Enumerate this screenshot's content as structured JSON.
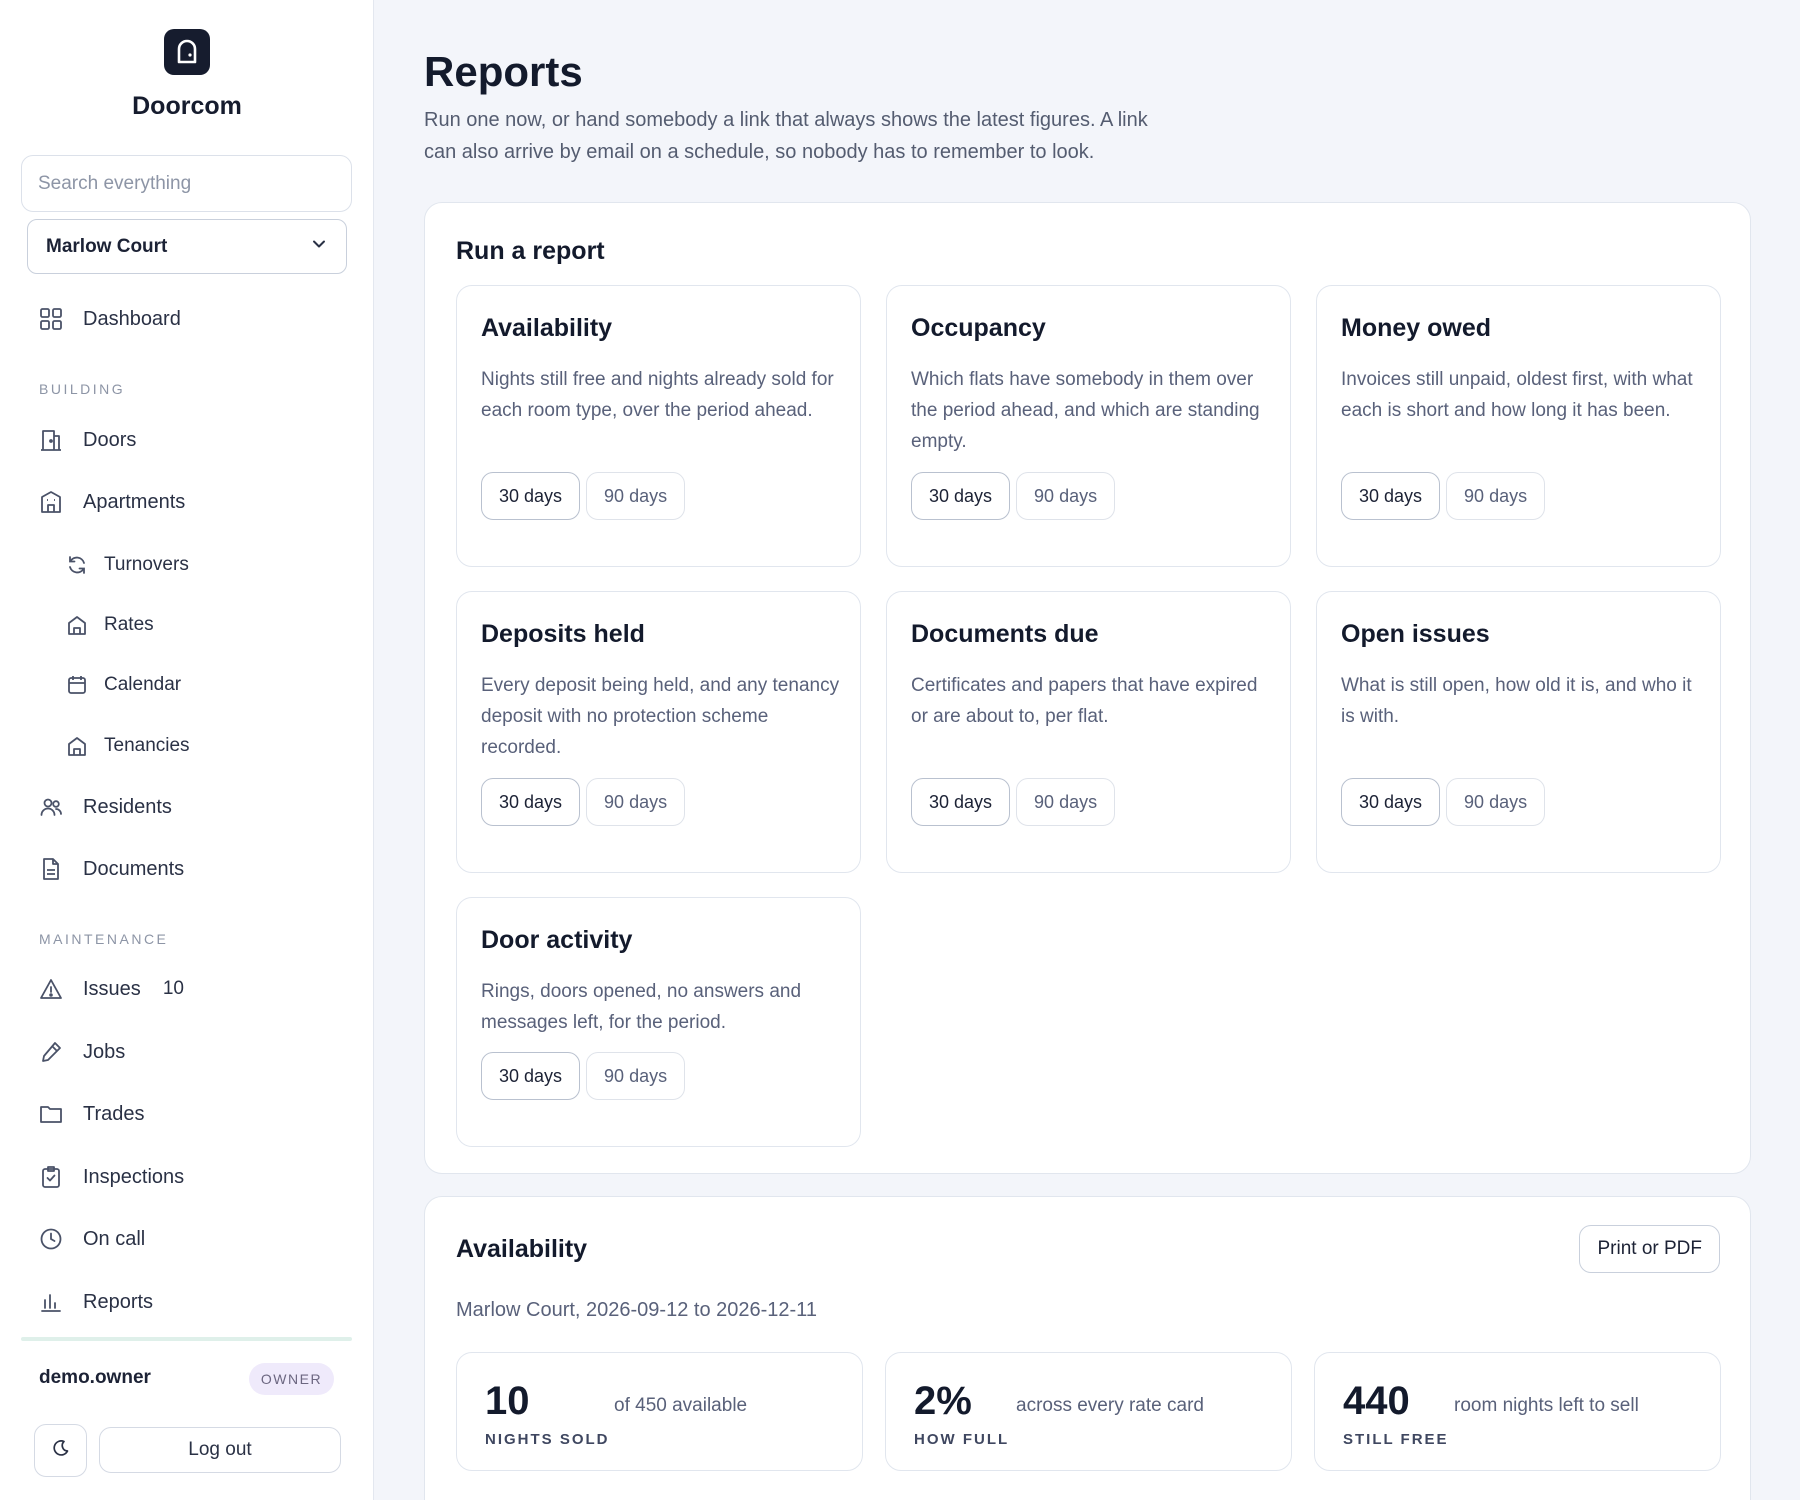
{
  "app": {
    "name": "Doorcom",
    "logo_icon": "door-icon"
  },
  "sidebar": {
    "search_placeholder": "Search everything",
    "building": "Marlow Court",
    "dashboard": {
      "label": "Dashboard",
      "icon": "grid-icon"
    },
    "sections": {
      "building": "BUILDING",
      "maintenance": "MAINTENANCE"
    },
    "building_items": [
      {
        "label": "Doors",
        "icon": "door-icon"
      },
      {
        "label": "Apartments",
        "icon": "building-icon"
      },
      {
        "label": "Turnovers",
        "icon": "refresh-icon"
      },
      {
        "label": "Rates",
        "icon": "home-icon"
      },
      {
        "label": "Calendar",
        "icon": "calendar-icon"
      },
      {
        "label": "Tenancies",
        "icon": "home-icon"
      },
      {
        "label": "Residents",
        "icon": "users-icon"
      },
      {
        "label": "Documents",
        "icon": "document-icon"
      }
    ],
    "maintenance_items": [
      {
        "label": "Issues",
        "icon": "alert-icon",
        "count": "10"
      },
      {
        "label": "Jobs",
        "icon": "pen-icon"
      },
      {
        "label": "Trades",
        "icon": "folder-icon"
      },
      {
        "label": "Inspections",
        "icon": "clipboard-check-icon"
      },
      {
        "label": "On call",
        "icon": "clock-icon"
      },
      {
        "label": "Reports",
        "icon": "bar-chart-icon"
      }
    ],
    "user": {
      "name": "demo.owner",
      "role": "OWNER"
    },
    "logout_label": "Log out",
    "theme_icon": "moon-icon"
  },
  "main": {
    "title": "Reports",
    "intro": "Run one now, or hand somebody a link that always shows the latest figures. A link can also arrive by email on a schedule, so nobody has to remember to look.",
    "run_section_title": "Run a report",
    "reports": [
      {
        "title": "Availability",
        "description": "Nights still free and nights already sold for each room type, over the period ahead.",
        "primary": "30 days",
        "secondary": "90 days"
      },
      {
        "title": "Occupancy",
        "description": "Which flats have somebody in them over the period ahead, and which are standing empty.",
        "primary": "30 days",
        "secondary": "90 days"
      },
      {
        "title": "Money owed",
        "description": "Invoices still unpaid, oldest first, with what each is short and how long it has been.",
        "primary": "30 days",
        "secondary": "90 days"
      },
      {
        "title": "Deposits held",
        "description": "Every deposit being held, and any tenancy deposit with no protection scheme recorded.",
        "primary": "30 days",
        "secondary": "90 days"
      },
      {
        "title": "Documents due",
        "description": "Certificates and papers that have expired or are about to, per flat.",
        "primary": "30 days",
        "secondary": "90 days"
      },
      {
        "title": "Open issues",
        "description": "What is still open, how old it is, and who it is with.",
        "primary": "30 days",
        "secondary": "90 days"
      },
      {
        "title": "Door activity",
        "description": "Rings, doors opened, no answers and messages left, for the period.",
        "primary": "30 days",
        "secondary": "90 days"
      }
    ],
    "result": {
      "title": "Availability",
      "print_label": "Print or PDF",
      "meta": "Marlow Court, 2026-09-12 to 2026-12-11",
      "stats": [
        {
          "value": "10",
          "label": "NIGHTS SOLD",
          "note": "of 450 available"
        },
        {
          "value": "2%",
          "label": "HOW FULL",
          "note": "across every rate card"
        },
        {
          "value": "440",
          "label": "STILL FREE",
          "note": "room nights left to sell"
        }
      ]
    }
  }
}
